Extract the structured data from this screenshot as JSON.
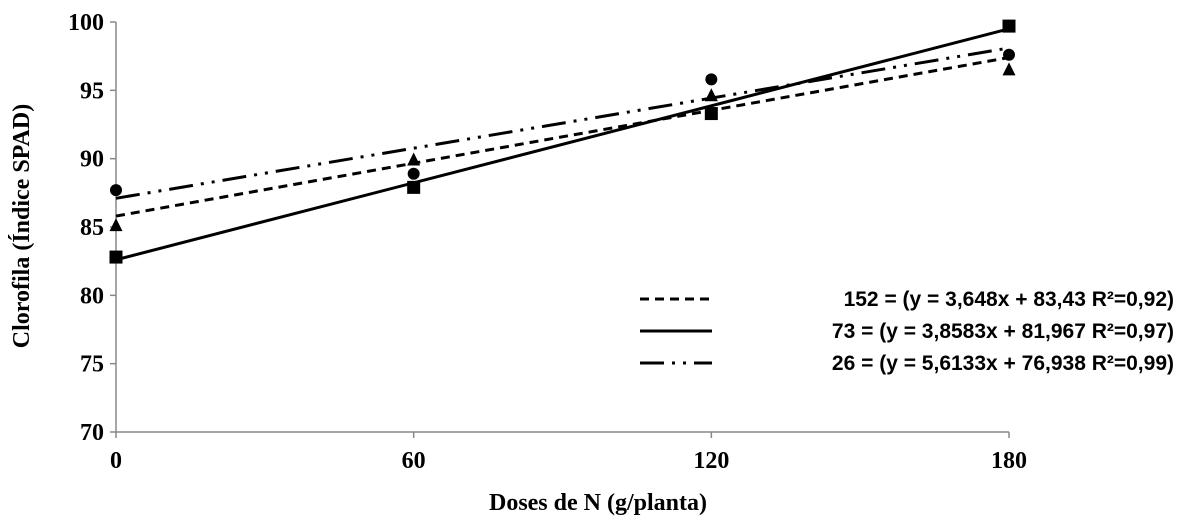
{
  "chart_data": {
    "type": "scatter",
    "xlabel": "Doses de N (g/planta)",
    "ylabel": "Clorofila (Índice SPAD)",
    "xlim": [
      0,
      180
    ],
    "ylim": [
      70,
      100
    ],
    "x_ticks": [
      "0",
      "60",
      "120",
      "180"
    ],
    "y_ticks": [
      "70",
      "75",
      "80",
      "85",
      "90",
      "95",
      "100"
    ],
    "grid": false,
    "legend_position": "lower-right",
    "x": [
      0,
      60,
      120,
      180
    ],
    "series": [
      {
        "name": "152 = (y = 3,648x + 83,43 R²=0,92)",
        "marker": "circle",
        "line_style": "dashed",
        "values": [
          87.7,
          88.9,
          95.8,
          97.6
        ],
        "trend": {
          "x": [
            0,
            180
          ],
          "y": [
            85.8,
            97.4
          ]
        }
      },
      {
        "name": "73 = (y = 3,8583x + 81,967 R²=0,97)",
        "marker": "square",
        "line_style": "solid",
        "values": [
          82.8,
          87.9,
          93.3,
          99.7
        ],
        "trend": {
          "x": [
            0,
            180
          ],
          "y": [
            82.6,
            99.5
          ]
        }
      },
      {
        "name": "26 = (y = 5,6133x + 76,938 R²=0,99)",
        "marker": "triangle",
        "line_style": "dash-dot-dot",
        "values": [
          85.1,
          89.9,
          94.6,
          96.5
        ],
        "trend": {
          "x": [
            0,
            180
          ],
          "y": [
            87.1,
            98.1
          ]
        }
      }
    ]
  }
}
